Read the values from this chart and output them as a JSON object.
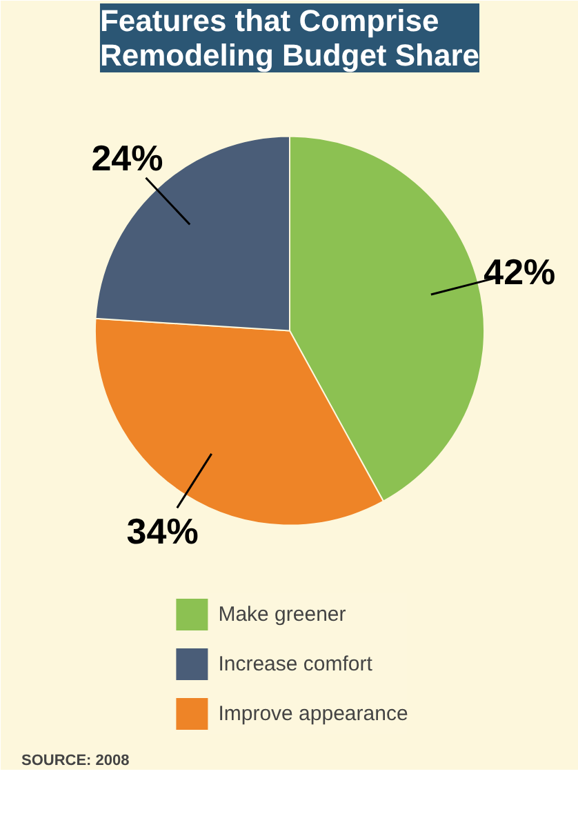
{
  "chart_data": {
    "type": "pie",
    "title": "Features that Comprise\nRemodeling Budget Share",
    "categories": [
      "Make greener",
      "Increase comfort",
      "Improve appearance"
    ],
    "values": [
      42,
      24,
      34
    ],
    "colors": [
      "#8cc152",
      "#4a5d78",
      "#ee8427"
    ],
    "value_labels": [
      "42%",
      "24%",
      "34%"
    ],
    "legend": "bottom",
    "annotations": [
      "SOURCE: 2008"
    ]
  }
}
